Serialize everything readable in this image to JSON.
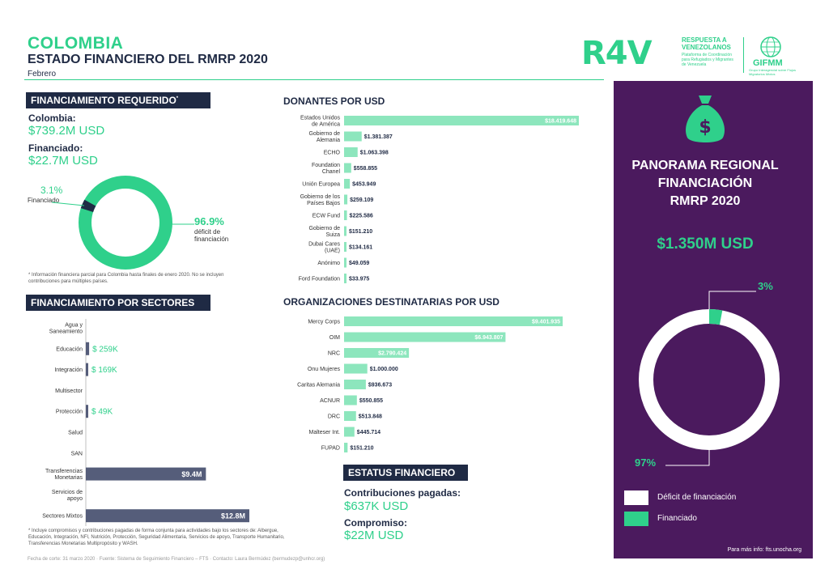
{
  "header": {
    "country": "COLOMBIA",
    "subtitle": "ESTADO FINANCIERO DEL RMRP 2020",
    "month": "Febrero"
  },
  "logos": {
    "r4v": "R4V",
    "r4v_text": "RESPUESTA A VENEZOLANOS",
    "r4v_small": "Plataforma de Coordinación para Refugiados y Migrantes de Venezuela",
    "gifmm": "GIFMM",
    "gifmm_small": "Grupo Interagencial sobre Flujos Migratorios Mixtos"
  },
  "requerido": {
    "section_title": "FINANCIAMIENTO REQUERIDO",
    "section_sup": "*",
    "colombia_label": "Colombia:",
    "colombia_value": "$739.2M USD",
    "financiado_label": "Financiado:",
    "financiado_value": "$22.7M USD",
    "pct_financiado": "3.1%",
    "pct_financiado_label": "Financiado",
    "pct_deficit": "96.9%",
    "pct_deficit_label": "déficit de financiación",
    "note": "* Información financiera parcial para Colombia hasta finales de enero 2020. No se incluyen contribuciones para múltiples países."
  },
  "sectores": {
    "section_title": "FINANCIAMIENTO POR SECTORES",
    "note": "* Incluye compromisos y contribuciones pagadas de forma conjunta para actividades bajo los sectores de: Albergue, Educación, Integración, NFI, Nutrición, Protección, Seguridad Alimentaria, Servicios de apoyo, Transporte Humanitario, Transferencias Monetarias Multipropósito y WASH."
  },
  "donantes": {
    "section_title": "DONANTES POR USD"
  },
  "organizaciones": {
    "section_title": "ORGANIZACIONES DESTINATARIAS POR USD"
  },
  "estatus": {
    "section_title": "ESTATUS FINANCIERO",
    "contrib_label": "Contribuciones pagadas:",
    "contrib_value": "$637K USD",
    "comp_label": "Compromiso:",
    "comp_value": "$22M USD"
  },
  "panorama": {
    "title_line1": "PANORAMA REGIONAL",
    "title_line2": "FINANCIACIÓN",
    "title_line3": "RMRP 2020",
    "amount": "$1.350M USD",
    "pct_financiado": "3%",
    "pct_deficit": "97%",
    "legend_deficit": "Déficit de financiación",
    "legend_financiado": "Financiado",
    "more_info": "Para más info: fts.unocha.org"
  },
  "footer": "Fecha de corte: 31 marzo 2020 · Fuente: Sistema de Seguimiento Financiero – FTS · Contacto: Laura Bermúdez (bermudezp@unhcr.org)",
  "colors": {
    "green": "#2fd08b",
    "navy": "#1f2a44",
    "purple": "#4b1a5e",
    "light_green": "#8de6bd",
    "slate": "#555d7a"
  },
  "chart_data": [
    {
      "type": "pie",
      "title": "",
      "labels": [
        "Financiado",
        "déficit de financiación"
      ],
      "values": [
        3.1,
        96.9
      ]
    },
    {
      "type": "bar",
      "title": "DONANTES POR USD",
      "categories": [
        "Estados Unidos de América",
        "Gobierno de Alemania",
        "ECHO",
        "Foundation Chanel",
        "Unión Europea",
        "Gobierno de los Países Bajos",
        "ECW Fund",
        "Gobierno de Suiza",
        "Dubai Cares (UAE)",
        "Anónimo",
        "Ford Foundation"
      ],
      "values": [
        18419648,
        1381387,
        1063398,
        558855,
        453949,
        259109,
        225586,
        151210,
        134161,
        49059,
        33975
      ],
      "value_labels": [
        "$18.419.648",
        "$1.381.387",
        "$1.063.398",
        "$558.855",
        "$453.949",
        "$259.109",
        "$225.586",
        "$151.210",
        "$134.161",
        "$49.059",
        "$33.975"
      ]
    },
    {
      "type": "bar",
      "title": "ORGANIZACIONES DESTINATARIAS POR USD",
      "categories": [
        "Mercy Corps",
        "OIM",
        "NRC",
        "Onu Mujeres",
        "Caritas Alemania",
        "ACNUR",
        "DRC",
        "Malteser Int.",
        "FUPAD"
      ],
      "values": [
        9401935,
        6943807,
        2790424,
        1000000,
        936673,
        550855,
        513848,
        445714,
        151210
      ],
      "value_labels": [
        "$9.401.935",
        "$6.943.807",
        "$2.790.424",
        "$1.000.000",
        "$936.673",
        "$550.855",
        "$513.848",
        "$445.714",
        "$151.210"
      ]
    },
    {
      "type": "bar",
      "title": "FINANCIAMIENTO POR SECTORES",
      "categories": [
        "Agua y Saneamiento",
        "Educación",
        "Integración",
        "Multisector",
        "Protección",
        "Salud",
        "SAN",
        "Transferencias Monetarias",
        "Servicios de apoyo",
        "Sectores Mixtos"
      ],
      "values": [
        0,
        259,
        169,
        0,
        49,
        0,
        0,
        9400,
        0,
        12800
      ],
      "unit": "K USD",
      "value_labels": [
        "",
        "$ 259K",
        "$ 169K",
        "",
        "$ 49K",
        "",
        "",
        "$9.4M",
        "",
        "$12.8M"
      ]
    },
    {
      "type": "pie",
      "title": "PANORAMA REGIONAL",
      "labels": [
        "Financiado",
        "Déficit de financiación"
      ],
      "values": [
        3,
        97
      ]
    }
  ]
}
